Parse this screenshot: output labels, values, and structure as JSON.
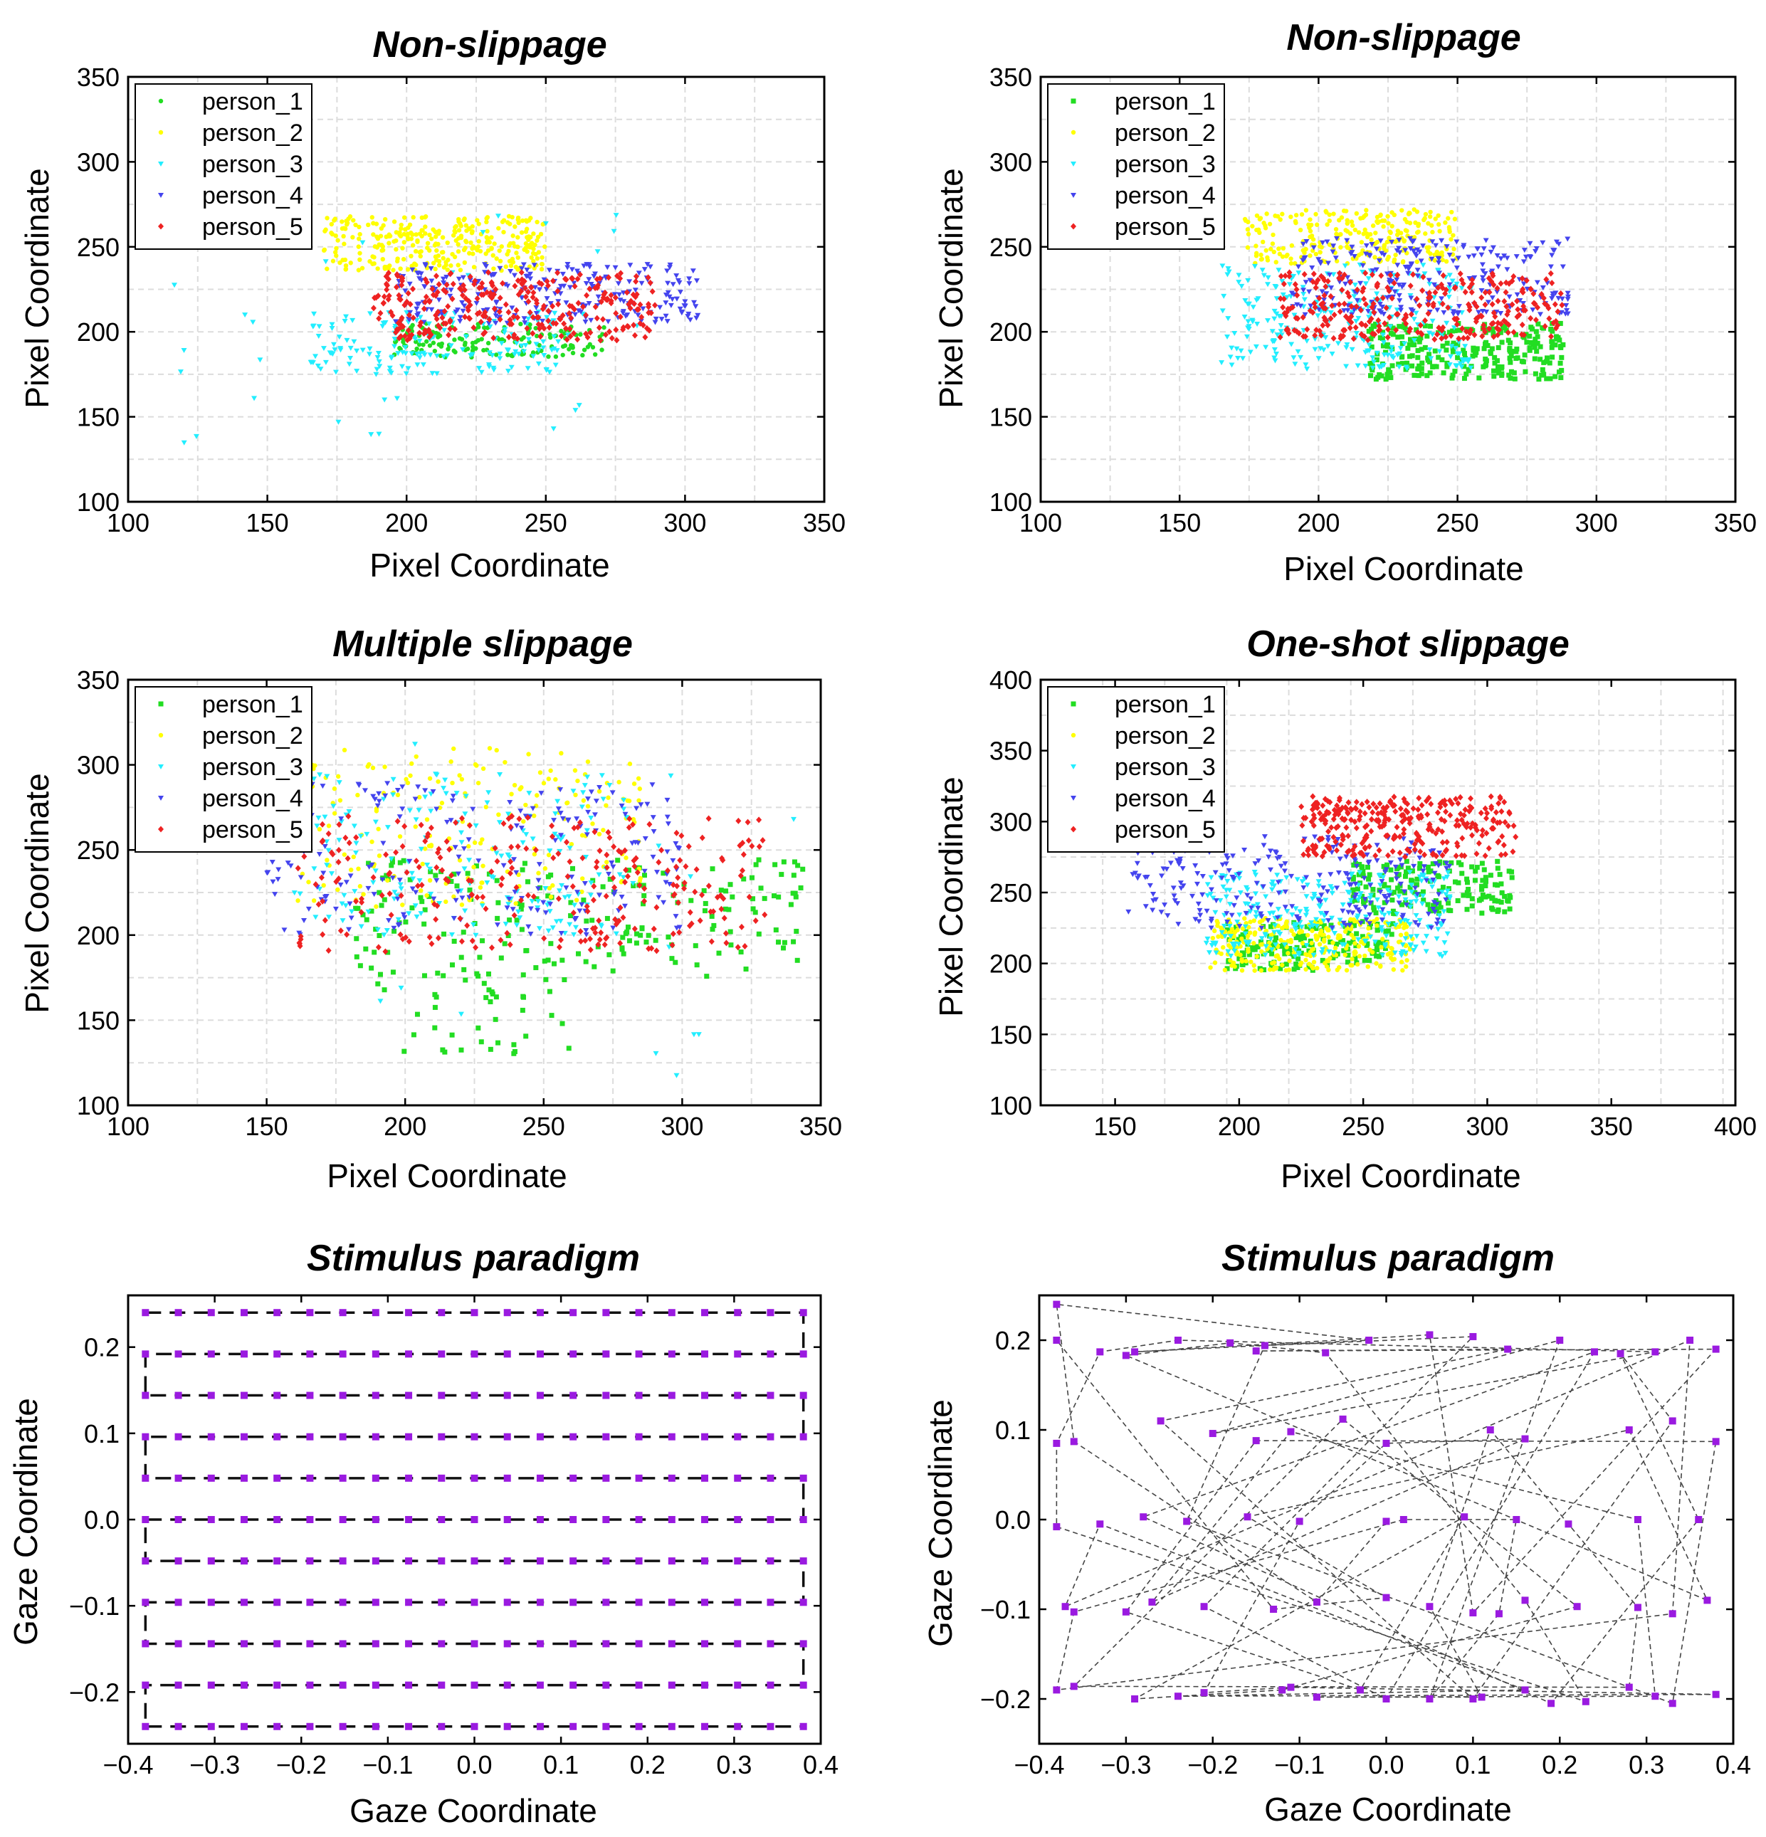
{
  "chart_data": [
    {
      "id": "p1",
      "type": "scatter",
      "title": "Non-slippage",
      "xlabel": "Pixel Coordinate",
      "ylabel": "Pixel Coordinate",
      "xlim": [
        100,
        350
      ],
      "ylim": [
        100,
        350
      ],
      "xticks": [
        100,
        150,
        200,
        250,
        300,
        350
      ],
      "yticks": [
        100,
        150,
        200,
        250,
        300,
        350
      ],
      "grid": true,
      "legend": "top-left",
      "series": [
        {
          "name": "person_1",
          "color": "#22dd22",
          "marker": "dot",
          "count": 150,
          "seed": 11,
          "clusters": [
            {
              "x": [
                195,
                272
              ],
              "y": [
                185,
                205
              ],
              "w": 1
            }
          ]
        },
        {
          "name": "person_2",
          "color": "#ffff00",
          "marker": "dot",
          "count": 320,
          "seed": 12,
          "clusters": [
            {
              "x": [
                170,
                250
              ],
              "y": [
                236,
                268
              ],
              "w": 1
            }
          ]
        },
        {
          "name": "person_3",
          "color": "#22eeff",
          "marker": "tri",
          "count": 200,
          "seed": 13,
          "clusters": [
            {
              "x": [
                165,
                255
              ],
              "y": [
                175,
                212
              ],
              "w": 0.85
            },
            {
              "x": [
                115,
                285
              ],
              "y": [
                130,
                270
              ],
              "w": 0.15
            }
          ]
        },
        {
          "name": "person_4",
          "color": "#4444ee",
          "marker": "tri",
          "count": 250,
          "seed": 14,
          "clusters": [
            {
              "x": [
                195,
                305
              ],
              "y": [
                205,
                240
              ],
              "w": 1
            }
          ]
        },
        {
          "name": "person_5",
          "color": "#ee2222",
          "marker": "diamond",
          "count": 300,
          "seed": 15,
          "clusters": [
            {
              "x": [
                188,
                290
              ],
              "y": [
                195,
                235
              ],
              "w": 1
            }
          ]
        }
      ]
    },
    {
      "id": "p2",
      "type": "scatter",
      "title": "Non-slippage",
      "xlabel": "Pixel Coordinate",
      "ylabel": "Pixel Coordinate",
      "xlim": [
        100,
        350
      ],
      "ylim": [
        100,
        350
      ],
      "xticks": [
        100,
        150,
        200,
        250,
        300,
        350
      ],
      "yticks": [
        100,
        150,
        200,
        250,
        300,
        350
      ],
      "grid": true,
      "legend": "top-left",
      "series": [
        {
          "name": "person_1",
          "color": "#22dd22",
          "marker": "square",
          "count": 260,
          "seed": 21,
          "clusters": [
            {
              "x": [
                218,
                288
              ],
              "y": [
                172,
                205
              ],
              "w": 1
            }
          ]
        },
        {
          "name": "person_2",
          "color": "#ffff00",
          "marker": "dot",
          "count": 260,
          "seed": 22,
          "clusters": [
            {
              "x": [
                172,
                250
              ],
              "y": [
                240,
                272
              ],
              "w": 1
            }
          ]
        },
        {
          "name": "person_3",
          "color": "#22eeff",
          "marker": "tri",
          "count": 260,
          "seed": 23,
          "clusters": [
            {
              "x": [
                165,
                255
              ],
              "y": [
                178,
                240
              ],
              "w": 1
            }
          ]
        },
        {
          "name": "person_4",
          "color": "#4444ee",
          "marker": "tri",
          "count": 260,
          "seed": 24,
          "clusters": [
            {
              "x": [
                190,
                290
              ],
              "y": [
                210,
                255
              ],
              "w": 1
            }
          ]
        },
        {
          "name": "person_5",
          "color": "#ee2222",
          "marker": "diamond",
          "count": 300,
          "seed": 25,
          "clusters": [
            {
              "x": [
                185,
                288
              ],
              "y": [
                195,
                235
              ],
              "w": 1
            }
          ]
        }
      ]
    },
    {
      "id": "p3",
      "type": "scatter",
      "title": "Multiple slippage",
      "xlabel": "Pixel Coordinate",
      "ylabel": "Pixel Coordinate",
      "xlim": [
        100,
        350
      ],
      "ylim": [
        100,
        350
      ],
      "xticks": [
        100,
        150,
        200,
        250,
        300,
        350
      ],
      "yticks": [
        100,
        150,
        200,
        250,
        300,
        350
      ],
      "grid": true,
      "legend": "top-left",
      "series": [
        {
          "name": "person_1",
          "color": "#22dd22",
          "marker": "square",
          "count": 240,
          "seed": 31,
          "clusters": [
            {
              "x": [
                180,
                345
              ],
              "y": [
                175,
                245
              ],
              "w": 0.8
            },
            {
              "x": [
                190,
                260
              ],
              "y": [
                130,
                180
              ],
              "w": 0.2
            }
          ]
        },
        {
          "name": "person_2",
          "color": "#ffff00",
          "marker": "dot",
          "count": 200,
          "seed": 32,
          "clusters": [
            {
              "x": [
                160,
                285
              ],
              "y": [
                215,
                310
              ],
              "w": 1
            }
          ]
        },
        {
          "name": "person_3",
          "color": "#22eeff",
          "marker": "tri",
          "count": 200,
          "seed": 33,
          "clusters": [
            {
              "x": [
                160,
                280
              ],
              "y": [
                200,
                295
              ],
              "w": 0.9
            },
            {
              "x": [
                150,
                350
              ],
              "y": [
                115,
                325
              ],
              "w": 0.1
            }
          ]
        },
        {
          "name": "person_4",
          "color": "#4444ee",
          "marker": "tri",
          "count": 200,
          "seed": 34,
          "clusters": [
            {
              "x": [
                150,
                300
              ],
              "y": [
                200,
                290
              ],
              "w": 1
            }
          ]
        },
        {
          "name": "person_5",
          "color": "#ee2222",
          "marker": "diamond",
          "count": 260,
          "seed": 35,
          "clusters": [
            {
              "x": [
                160,
                330
              ],
              "y": [
                190,
                270
              ],
              "w": 1
            }
          ]
        }
      ]
    },
    {
      "id": "p4",
      "type": "scatter",
      "title": "One-shot slippage",
      "xlabel": "Pixel Coordinate",
      "ylabel": "Pixel Coordinate",
      "xlim": [
        120,
        400
      ],
      "ylim": [
        100,
        400
      ],
      "xticks": [
        150,
        200,
        250,
        300,
        350,
        400
      ],
      "yticks": [
        100,
        150,
        200,
        250,
        300,
        350,
        400
      ],
      "grid": true,
      "legend": "top-left",
      "series": [
        {
          "name": "person_1",
          "color": "#22dd22",
          "marker": "square",
          "count": 340,
          "seed": 41,
          "clusters": [
            {
              "x": [
                245,
                310
              ],
              "y": [
                235,
                272
              ],
              "w": 0.5
            },
            {
              "x": [
                195,
                262
              ],
              "y": [
                195,
                230
              ],
              "w": 0.5
            }
          ]
        },
        {
          "name": "person_2",
          "color": "#ffff00",
          "marker": "dot",
          "count": 280,
          "seed": 42,
          "clusters": [
            {
              "x": [
                188,
                270
              ],
              "y": [
                195,
                232
              ],
              "w": 1
            }
          ]
        },
        {
          "name": "person_3",
          "color": "#22eeff",
          "marker": "tri",
          "count": 260,
          "seed": 43,
          "clusters": [
            {
              "x": [
                185,
                285
              ],
              "y": [
                205,
                265
              ],
              "w": 1
            }
          ]
        },
        {
          "name": "person_4",
          "color": "#4444ee",
          "marker": "tri",
          "count": 240,
          "seed": 44,
          "clusters": [
            {
              "x": [
                155,
                285
              ],
              "y": [
                225,
                290
              ],
              "w": 1
            }
          ]
        },
        {
          "name": "person_5",
          "color": "#ee2222",
          "marker": "diamond",
          "count": 300,
          "seed": 45,
          "clusters": [
            {
              "x": [
                225,
                312
              ],
              "y": [
                275,
                318
              ],
              "w": 1
            }
          ]
        }
      ]
    },
    {
      "id": "p5",
      "type": "line",
      "title": "Stimulus paradigm",
      "xlabel": "Gaze Coordinate",
      "ylabel": "Gaze Coordinate",
      "xlim": [
        -0.4,
        0.4
      ],
      "ylim": [
        -0.26,
        0.26
      ],
      "xticks": [
        -0.4,
        -0.3,
        -0.2,
        -0.1,
        0.0,
        0.1,
        0.2,
        0.3,
        0.4
      ],
      "xtick_labels": [
        "−0.4",
        "−0.3",
        "−0.2",
        "−0.1",
        "0.0",
        "0.1",
        "0.2",
        "0.3",
        "0.4"
      ],
      "yticks": [
        -0.2,
        -0.1,
        0.0,
        0.1,
        0.2
      ],
      "ytick_labels": [
        "−0.2",
        "−0.1",
        "0.0",
        "0.1",
        "0.2"
      ],
      "grid": false,
      "pattern": "serpentine",
      "columns": 21,
      "x_range": [
        -0.38,
        0.38
      ],
      "rows_y": [
        0.24,
        0.192,
        0.144,
        0.096,
        0.048,
        0.0,
        -0.048,
        -0.096,
        -0.144,
        -0.192,
        -0.24
      ],
      "marker_color": "#9a1ae0",
      "line_color": "#111111"
    },
    {
      "id": "p6",
      "type": "line",
      "title": "Stimulus paradigm",
      "xlabel": "Gaze Coordinate",
      "ylabel": "Gaze Coordinate",
      "xlim": [
        -0.4,
        0.4
      ],
      "ylim": [
        -0.25,
        0.25
      ],
      "xticks": [
        -0.4,
        -0.3,
        -0.2,
        -0.1,
        0.0,
        0.1,
        0.2,
        0.3,
        0.4
      ],
      "xtick_labels": [
        "−0.4",
        "−0.3",
        "−0.2",
        "−0.1",
        "0.0",
        "0.1",
        "0.2",
        "0.3",
        "0.4"
      ],
      "yticks": [
        -0.2,
        -0.1,
        0.0,
        0.1,
        0.2
      ],
      "ytick_labels": [
        "−0.2",
        "−0.1",
        "0.0",
        "0.1",
        "0.2"
      ],
      "grid": false,
      "pattern": "random",
      "marker_color": "#9a1ae0",
      "line_color": "#444444",
      "points": [
        [
          -0.38,
          0.24
        ],
        [
          -0.38,
          0.2
        ],
        [
          -0.33,
          0.187
        ],
        [
          -0.3,
          0.183
        ],
        [
          -0.29,
          0.187
        ],
        [
          -0.24,
          0.2
        ],
        [
          -0.18,
          0.197
        ],
        [
          -0.15,
          0.188
        ],
        [
          -0.14,
          0.194
        ],
        [
          -0.07,
          0.186
        ],
        [
          -0.02,
          0.2
        ],
        [
          0.05,
          0.206
        ],
        [
          0.1,
          0.204
        ],
        [
          0.14,
          0.19
        ],
        [
          0.2,
          0.2
        ],
        [
          0.24,
          0.187
        ],
        [
          0.27,
          0.185
        ],
        [
          0.31,
          0.187
        ],
        [
          0.35,
          0.2
        ],
        [
          0.38,
          0.19
        ],
        [
          -0.38,
          0.085
        ],
        [
          -0.36,
          0.087
        ],
        [
          -0.26,
          0.11
        ],
        [
          -0.2,
          0.096
        ],
        [
          -0.15,
          0.088
        ],
        [
          -0.11,
          0.098
        ],
        [
          -0.05,
          0.112
        ],
        [
          0.0,
          0.085
        ],
        [
          0.12,
          0.1
        ],
        [
          0.16,
          0.09
        ],
        [
          0.28,
          0.1
        ],
        [
          0.33,
          0.11
        ],
        [
          0.38,
          0.087
        ],
        [
          -0.38,
          -0.008
        ],
        [
          -0.33,
          -0.005
        ],
        [
          -0.28,
          0.003
        ],
        [
          -0.23,
          -0.002
        ],
        [
          -0.16,
          0.003
        ],
        [
          -0.1,
          -0.002
        ],
        [
          0.0,
          -0.002
        ],
        [
          0.02,
          0.0
        ],
        [
          0.09,
          0.003
        ],
        [
          0.15,
          0.0
        ],
        [
          0.21,
          -0.005
        ],
        [
          0.29,
          0.0
        ],
        [
          0.36,
          0.0
        ],
        [
          -0.37,
          -0.097
        ],
        [
          -0.36,
          -0.103
        ],
        [
          -0.3,
          -0.103
        ],
        [
          -0.27,
          -0.092
        ],
        [
          -0.21,
          -0.097
        ],
        [
          -0.13,
          -0.1
        ],
        [
          -0.08,
          -0.092
        ],
        [
          0.0,
          -0.087
        ],
        [
          0.05,
          -0.097
        ],
        [
          0.1,
          -0.104
        ],
        [
          0.13,
          -0.105
        ],
        [
          0.16,
          -0.09
        ],
        [
          0.22,
          -0.097
        ],
        [
          0.29,
          -0.098
        ],
        [
          0.33,
          -0.105
        ],
        [
          0.37,
          -0.09
        ],
        [
          -0.38,
          -0.19
        ],
        [
          -0.36,
          -0.186
        ],
        [
          -0.29,
          -0.2
        ],
        [
          -0.24,
          -0.197
        ],
        [
          -0.21,
          -0.193
        ],
        [
          -0.12,
          -0.19
        ],
        [
          -0.11,
          -0.187
        ],
        [
          -0.08,
          -0.198
        ],
        [
          -0.03,
          -0.19
        ],
        [
          0.0,
          -0.2
        ],
        [
          0.05,
          -0.2
        ],
        [
          0.1,
          -0.2
        ],
        [
          0.11,
          -0.198
        ],
        [
          0.16,
          -0.19
        ],
        [
          0.19,
          -0.205
        ],
        [
          0.23,
          -0.203
        ],
        [
          0.28,
          -0.187
        ],
        [
          0.31,
          -0.197
        ],
        [
          0.33,
          -0.205
        ],
        [
          0.38,
          -0.195
        ]
      ]
    }
  ]
}
